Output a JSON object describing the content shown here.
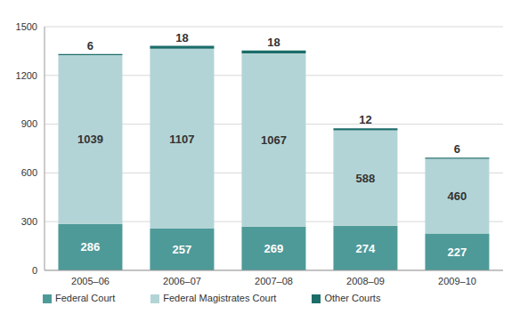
{
  "chart_data": {
    "type": "bar",
    "categories": [
      "2005–06",
      "2006–07",
      "2007–08",
      "2008–09",
      "2009–10"
    ],
    "series": [
      {
        "name": "Federal Court",
        "color": "#4e9a99",
        "values": [
          286,
          257,
          269,
          274,
          227
        ]
      },
      {
        "name": "Federal Magistrates Court",
        "color": "#b3d4d6",
        "values": [
          1039,
          1107,
          1067,
          588,
          460
        ]
      },
      {
        "name": "Other Courts",
        "color": "#1b6d6a",
        "values": [
          6,
          18,
          18,
          12,
          6
        ]
      }
    ],
    "ylim": [
      0,
      1500
    ],
    "yticks": [
      0,
      300,
      600,
      900,
      1200,
      1500
    ],
    "grid": true,
    "stacked": true,
    "data_labels": true,
    "legend": "bottom"
  }
}
